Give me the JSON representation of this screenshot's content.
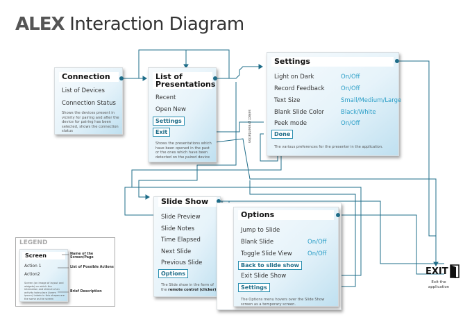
{
  "title": {
    "bold": "ALEX",
    "rest": " Interaction Diagram"
  },
  "connection": {
    "header": "Connection",
    "items": [
      "List of Devices",
      "Connection Status"
    ],
    "description": "Shows the devices present in vicinity for pairing and after the device for pairing has been selected, shows the connection status"
  },
  "presentations": {
    "header_line1": "List of",
    "header_line2": "Presentations",
    "items": [
      "Recent",
      "Open New"
    ],
    "buttons": [
      "Settings",
      "Exit"
    ],
    "description": "Shows the presentations which have been opened in the past or the ones which have been detected on the paired device"
  },
  "settings": {
    "header": "Settings",
    "rows": [
      {
        "label": "Light on Dark",
        "value": "On/Off"
      },
      {
        "label": "Record Feedback",
        "value": "On/Off"
      },
      {
        "label": "Text Size",
        "value": "Small/Medium/Large"
      },
      {
        "label": "Blank Slide Color",
        "value": "Black/White"
      },
      {
        "label": "Peek mode",
        "value": "On/Off"
      }
    ],
    "button": "Done",
    "description": "The various preferences for the presenter in the application."
  },
  "connector_label": "select presentation",
  "slideshow": {
    "header": "Slide Show",
    "items": [
      "Slide Preview",
      "Slide Notes",
      "Time Elapsed",
      "Next Slide",
      "Previous Slide"
    ],
    "button": "Options",
    "description_pre": "The Slide show in the form of the",
    "description_bold": "remote control (clicker)"
  },
  "options": {
    "header": "Options",
    "rows": [
      {
        "label": "Jump to Slide",
        "value": ""
      },
      {
        "label": "Blank Slide",
        "value": "On/Off"
      },
      {
        "label": "Toggle Slide View",
        "value": "On/Off"
      }
    ],
    "button_back": "Back to slide show",
    "exit_item": "Exit Slide Show",
    "button_settings": "Settings",
    "description": "The Options menu hovers over the Slide Show screen as a temporary screen."
  },
  "exit": {
    "label": "EXIT",
    "sub_line1": "Exit the",
    "sub_line2": "application",
    "icon": "exit-door-icon"
  },
  "legend": {
    "title": "LEGEND",
    "screen": "Screen",
    "actions": [
      "Action 1",
      "Action2"
    ],
    "desc": "Screen (an image of layout and widgets) on which the interaction and stimuli of an activity take place (lorem ipsum) Labels in this shapes are the same as the screen",
    "labels": [
      "Name of the Screen/Page",
      "List of Possible Actions",
      "Brief Description"
    ]
  },
  "colors": {
    "accent": "#1e6c88",
    "value": "#2a9ec7",
    "panel_light": "#eef7fb",
    "panel_dark": "#bfe0f0"
  }
}
